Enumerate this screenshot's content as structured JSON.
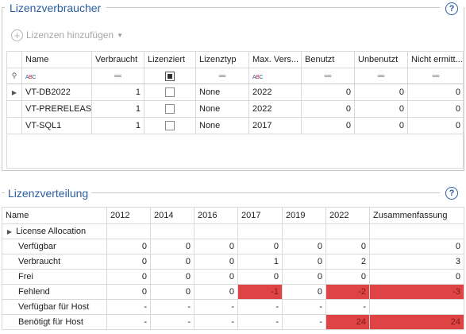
{
  "section1": {
    "title": "Lizenzverbraucher",
    "help": "?",
    "add_button": "Lizenzen hinzufügen",
    "columns": [
      "Name",
      "Verbraucht",
      "Lizenziert",
      "Lizenztyp",
      "Max. Vers...",
      "Benutzt",
      "Unbenutzt",
      "Nicht ermitt..."
    ],
    "rows": [
      {
        "name": "VT-DB2022",
        "verbraucht": "1",
        "lizenziert": false,
        "lizenztyp": "None",
        "max_version": "2022",
        "benutzt": "0",
        "unbenutzt": "0",
        "nicht_ermittelt": "0"
      },
      {
        "name": "VT-PRERELEASE",
        "verbraucht": "1",
        "lizenziert": false,
        "lizenztyp": "None",
        "max_version": "2022",
        "benutzt": "0",
        "unbenutzt": "0",
        "nicht_ermittelt": "0"
      },
      {
        "name": "VT-SQL1",
        "verbraucht": "1",
        "lizenziert": false,
        "lizenztyp": "None",
        "max_version": "2017",
        "benutzt": "0",
        "unbenutzt": "0",
        "nicht_ermittelt": "0"
      }
    ]
  },
  "section2": {
    "title": "Lizenzverteilung",
    "help": "?",
    "columns": [
      "Name",
      "2012",
      "2014",
      "2016",
      "2017",
      "2019",
      "2022",
      "Zusammenfassung"
    ],
    "group": "License Allocation",
    "rows": [
      {
        "label": "Verfügbar",
        "values": [
          "0",
          "0",
          "0",
          "0",
          "0",
          "0",
          "0"
        ]
      },
      {
        "label": "Verbraucht",
        "values": [
          "0",
          "0",
          "0",
          "1",
          "0",
          "2",
          "3"
        ]
      },
      {
        "label": "Frei",
        "values": [
          "0",
          "0",
          "0",
          "0",
          "0",
          "0",
          "0"
        ]
      },
      {
        "label": "Fehlend",
        "values": [
          "0",
          "0",
          "0",
          "-1",
          "0",
          "-2",
          "-3"
        ]
      },
      {
        "label": "Verfügbar für Host",
        "values": [
          "-",
          "-",
          "-",
          "-",
          "-",
          "-",
          ""
        ]
      },
      {
        "label": "Benötigt für Host",
        "values": [
          "-",
          "-",
          "-",
          "-",
          "-",
          "24",
          "24"
        ]
      }
    ],
    "highlight_color": "#e04343"
  }
}
